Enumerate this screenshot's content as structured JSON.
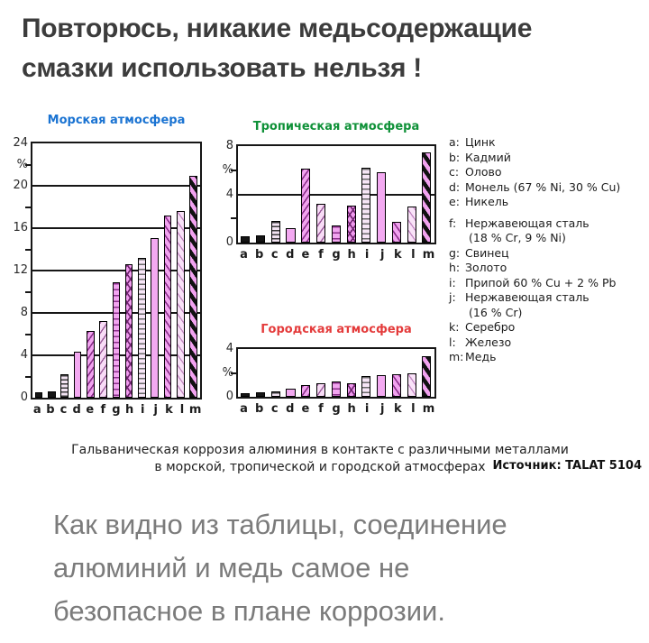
{
  "heading": {
    "lines": [
      "Повторюсь, никакие медьсодержащие",
      "смазки использовать нельзя !"
    ]
  },
  "chart_data": [
    {
      "type": "bar",
      "title": "Морская атмосфера",
      "title_color": "#1a73d2",
      "categories": [
        "a",
        "b",
        "c",
        "d",
        "e",
        "f",
        "g",
        "h",
        "i",
        "j",
        "k",
        "l",
        "m"
      ],
      "values": [
        0.5,
        0.6,
        2.2,
        4.3,
        6.3,
        7.2,
        10.9,
        12.6,
        13.2,
        15.1,
        17.2,
        17.6,
        20.9
      ],
      "axis": {
        "unit": "%",
        "ymax": 24,
        "gridlines": [
          4,
          8,
          12,
          16,
          20
        ],
        "minor_ticks": [
          2,
          6,
          10,
          14,
          18,
          22
        ],
        "labels": [
          {
            "value": 24,
            "text": "24"
          },
          {
            "value": 22,
            "text": "%"
          },
          {
            "value": 20,
            "text": "20"
          },
          {
            "value": 16,
            "text": "16"
          },
          {
            "value": 12,
            "text": "12"
          },
          {
            "value": 8,
            "text": "8"
          },
          {
            "value": 4,
            "text": "4"
          },
          {
            "value": 0,
            "text": "0"
          }
        ]
      }
    },
    {
      "type": "bar",
      "title": "Тропическая атмосфера",
      "title_color": "#0f9138",
      "categories": [
        "a",
        "b",
        "c",
        "d",
        "e",
        "f",
        "g",
        "h",
        "i",
        "j",
        "k",
        "l",
        "m"
      ],
      "values": [
        0.55,
        0.6,
        1.8,
        1.2,
        6.1,
        3.2,
        1.4,
        3.1,
        6.2,
        5.8,
        1.7,
        3.0,
        7.5
      ],
      "axis": {
        "unit": "%",
        "ymax": 8,
        "gridlines": [
          4
        ],
        "minor_ticks": [
          2,
          6
        ],
        "labels": [
          {
            "value": 8,
            "text": "8"
          },
          {
            "value": 6,
            "text": "%"
          },
          {
            "value": 4,
            "text": "4"
          },
          {
            "value": 0,
            "text": "0"
          }
        ]
      }
    },
    {
      "type": "bar",
      "title": "Городская атмосфера",
      "title_color": "#e43b3b",
      "categories": [
        "a",
        "b",
        "c",
        "d",
        "e",
        "f",
        "g",
        "h",
        "i",
        "j",
        "k",
        "l",
        "m"
      ],
      "values": [
        0.3,
        0.35,
        0.45,
        0.7,
        1.0,
        1.15,
        1.3,
        1.15,
        1.7,
        1.8,
        1.9,
        2.0,
        3.4
      ],
      "axis": {
        "unit": "%",
        "ymax": 4,
        "gridlines": [],
        "minor_ticks": [
          2
        ],
        "labels": [
          {
            "value": 4,
            "text": "4"
          },
          {
            "value": 2,
            "text": "%"
          },
          {
            "value": 0,
            "text": "0"
          }
        ]
      }
    }
  ],
  "legend": {
    "items": [
      {
        "letter": "a:",
        "lines": [
          "Цинк"
        ]
      },
      {
        "letter": "b:",
        "lines": [
          "Кадмий"
        ]
      },
      {
        "letter": "c:",
        "lines": [
          "Олово"
        ]
      },
      {
        "letter": "d:",
        "lines": [
          "Монель (67 % Ni, 30 % Cu)"
        ]
      },
      {
        "letter": "e:",
        "lines": [
          "Никель"
        ]
      },
      {
        "letter": "f:",
        "lines": [
          "Нержавеющая сталь",
          "(18 % Cr, 9 % Ni)"
        ],
        "gap_before": true
      },
      {
        "letter": "g:",
        "lines": [
          "Свинец"
        ]
      },
      {
        "letter": "h:",
        "lines": [
          "Золото"
        ]
      },
      {
        "letter": "i:",
        "lines": [
          "Припой 60 % Cu + 2 % Pb"
        ]
      },
      {
        "letter": "j:",
        "lines": [
          "Нержавеющая сталь",
          "(16 % Cr)"
        ]
      },
      {
        "letter": "k:",
        "lines": [
          "Серебро"
        ]
      },
      {
        "letter": "l:",
        "lines": [
          "Железо"
        ]
      },
      {
        "letter": "m:",
        "lines": [
          "Медь"
        ]
      }
    ]
  },
  "caption": {
    "lines": [
      "Гальваническая коррозия алюминия в контакте с различными металлами",
      "в морской, тропической и городской атмосферах"
    ],
    "source": "Источник: TALAT 5104"
  },
  "commentary": {
    "lines": [
      "Как видно из таблицы, соединение",
      "алюминий и медь самое не",
      "безопасное в плане коррозии."
    ]
  },
  "palette": {
    "bar_pink": "#f3a9f1",
    "bar_light_pink": "#f8dcf6",
    "bar_black": "#151515",
    "hatch_dark": "#8c2f8c",
    "axis_black": "#161616",
    "heading_color": "#3c3c3c",
    "commentary_gray": "#7b7b7b"
  }
}
